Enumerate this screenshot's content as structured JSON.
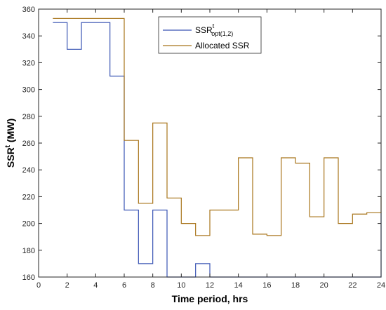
{
  "chart_data": {
    "type": "line",
    "step": true,
    "xlabel": "Time period, hrs",
    "ylabel": {
      "base": "SSR",
      "sup": "t",
      "unit": " (MW)"
    },
    "xlim": [
      0,
      24
    ],
    "ylim": [
      160,
      360
    ],
    "xticks": [
      0,
      2,
      4,
      6,
      8,
      10,
      12,
      14,
      16,
      18,
      20,
      22,
      24
    ],
    "yticks": [
      160,
      180,
      200,
      220,
      240,
      260,
      280,
      300,
      320,
      340,
      360
    ],
    "grid": false,
    "legend_position": "top-center",
    "series": [
      {
        "key": "opt",
        "name": {
          "base": "SSR",
          "sup": "t",
          "sub": "opt(1,2)"
        },
        "color": "#3a55b4",
        "x": [
          1,
          2,
          3,
          4,
          5,
          6,
          7,
          8,
          9,
          10,
          11,
          12,
          13,
          14,
          15,
          16,
          17,
          18,
          19,
          20,
          21,
          22,
          23,
          24
        ],
        "y": [
          350,
          330,
          350,
          350,
          310,
          210,
          170,
          210,
          160,
          160,
          170,
          160,
          160,
          160,
          160,
          160,
          160,
          160,
          160,
          160,
          160,
          160,
          160,
          208
        ]
      },
      {
        "key": "alloc",
        "name": {
          "base": "Allocated SSR"
        },
        "color": "#a8741a",
        "x": [
          1,
          2,
          3,
          4,
          5,
          6,
          7,
          8,
          9,
          10,
          11,
          12,
          13,
          14,
          15,
          16,
          17,
          18,
          19,
          20,
          21,
          22,
          23,
          24
        ],
        "y": [
          353,
          353,
          353,
          353,
          353,
          262,
          215,
          275,
          219,
          200,
          191,
          210,
          210,
          249,
          192,
          191,
          249,
          245,
          205,
          249,
          200,
          207,
          208,
          220
        ]
      }
    ]
  }
}
